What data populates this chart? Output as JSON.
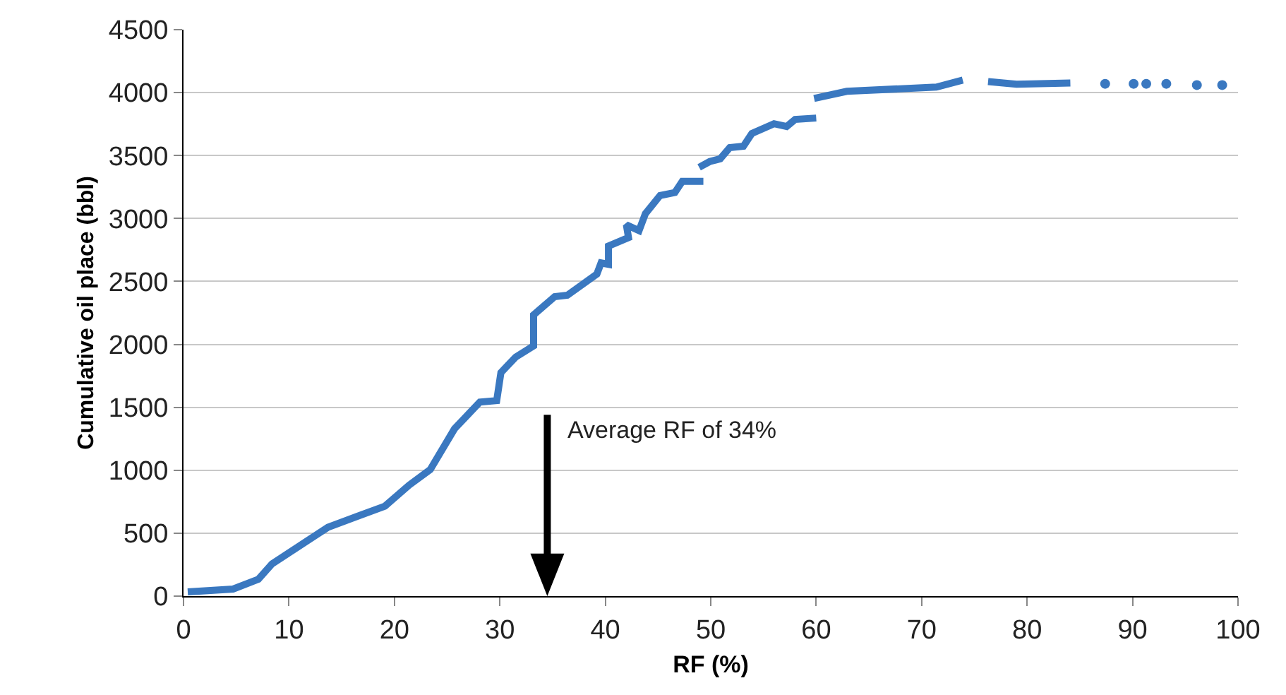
{
  "chart_data": {
    "type": "line",
    "xlabel": "RF (%)",
    "ylabel": "Cumulative oil place (bbl)",
    "xlim": [
      0,
      100
    ],
    "ylim": [
      0,
      4500
    ],
    "xticks": [
      0,
      10,
      20,
      30,
      40,
      50,
      60,
      70,
      80,
      90,
      100
    ],
    "yticks": [
      0,
      500,
      1000,
      1500,
      2000,
      2500,
      3000,
      3500,
      4000,
      4500
    ],
    "grid": "y",
    "line_style": "solid",
    "ref_lines": [
      {
        "axis": "x",
        "value": 34.5,
        "label": "Average RF of 34%",
        "color": "#000000"
      }
    ],
    "series": [
      {
        "color": "#3a78c0",
        "x": [
          0.4,
          4.7,
          7.1,
          8.4,
          13.7,
          19.1,
          21.4,
          23.4,
          25.7,
          28.1,
          29.7,
          30.1,
          31.5,
          33.2,
          33.2,
          35.2,
          36.4,
          39.2,
          39.6,
          40.3,
          40.3,
          42.2,
          42.0,
          43.2,
          43.8,
          45.2,
          46.6,
          47.3,
          49.3,
          49.1,
          48.9,
          49.9,
          50.9,
          51.8,
          53.1,
          53.9,
          56.0,
          57.2,
          58.0,
          60.0,
          59.9,
          59.8,
          62.9,
          71.4,
          73.9,
          75.1,
          76.3,
          79.0,
          84.1
        ],
        "values": [
          34,
          56,
          134,
          257,
          547,
          715,
          882,
          1005,
          1329,
          1541,
          1553,
          1776,
          1899,
          1988,
          2234,
          2379,
          2390,
          2558,
          2647,
          2636,
          2781,
          2848,
          2949,
          2904,
          3038,
          3183,
          3206,
          3295,
          3295,
          null,
          3407,
          3452,
          3474,
          3563,
          3574,
          3675,
          3753,
          3731,
          3787,
          3798,
          null,
          3954,
          4010,
          4044,
          4099,
          null,
          4088,
          4066,
          4077
        ]
      },
      {
        "type": "scatter",
        "color": "#3a78c0",
        "marker": "circle",
        "x": [
          87.4,
          90.1,
          91.3,
          93.2,
          96.1,
          98.5
        ],
        "values": [
          4070,
          4070,
          4070,
          4070,
          4060,
          4060
        ]
      }
    ]
  }
}
